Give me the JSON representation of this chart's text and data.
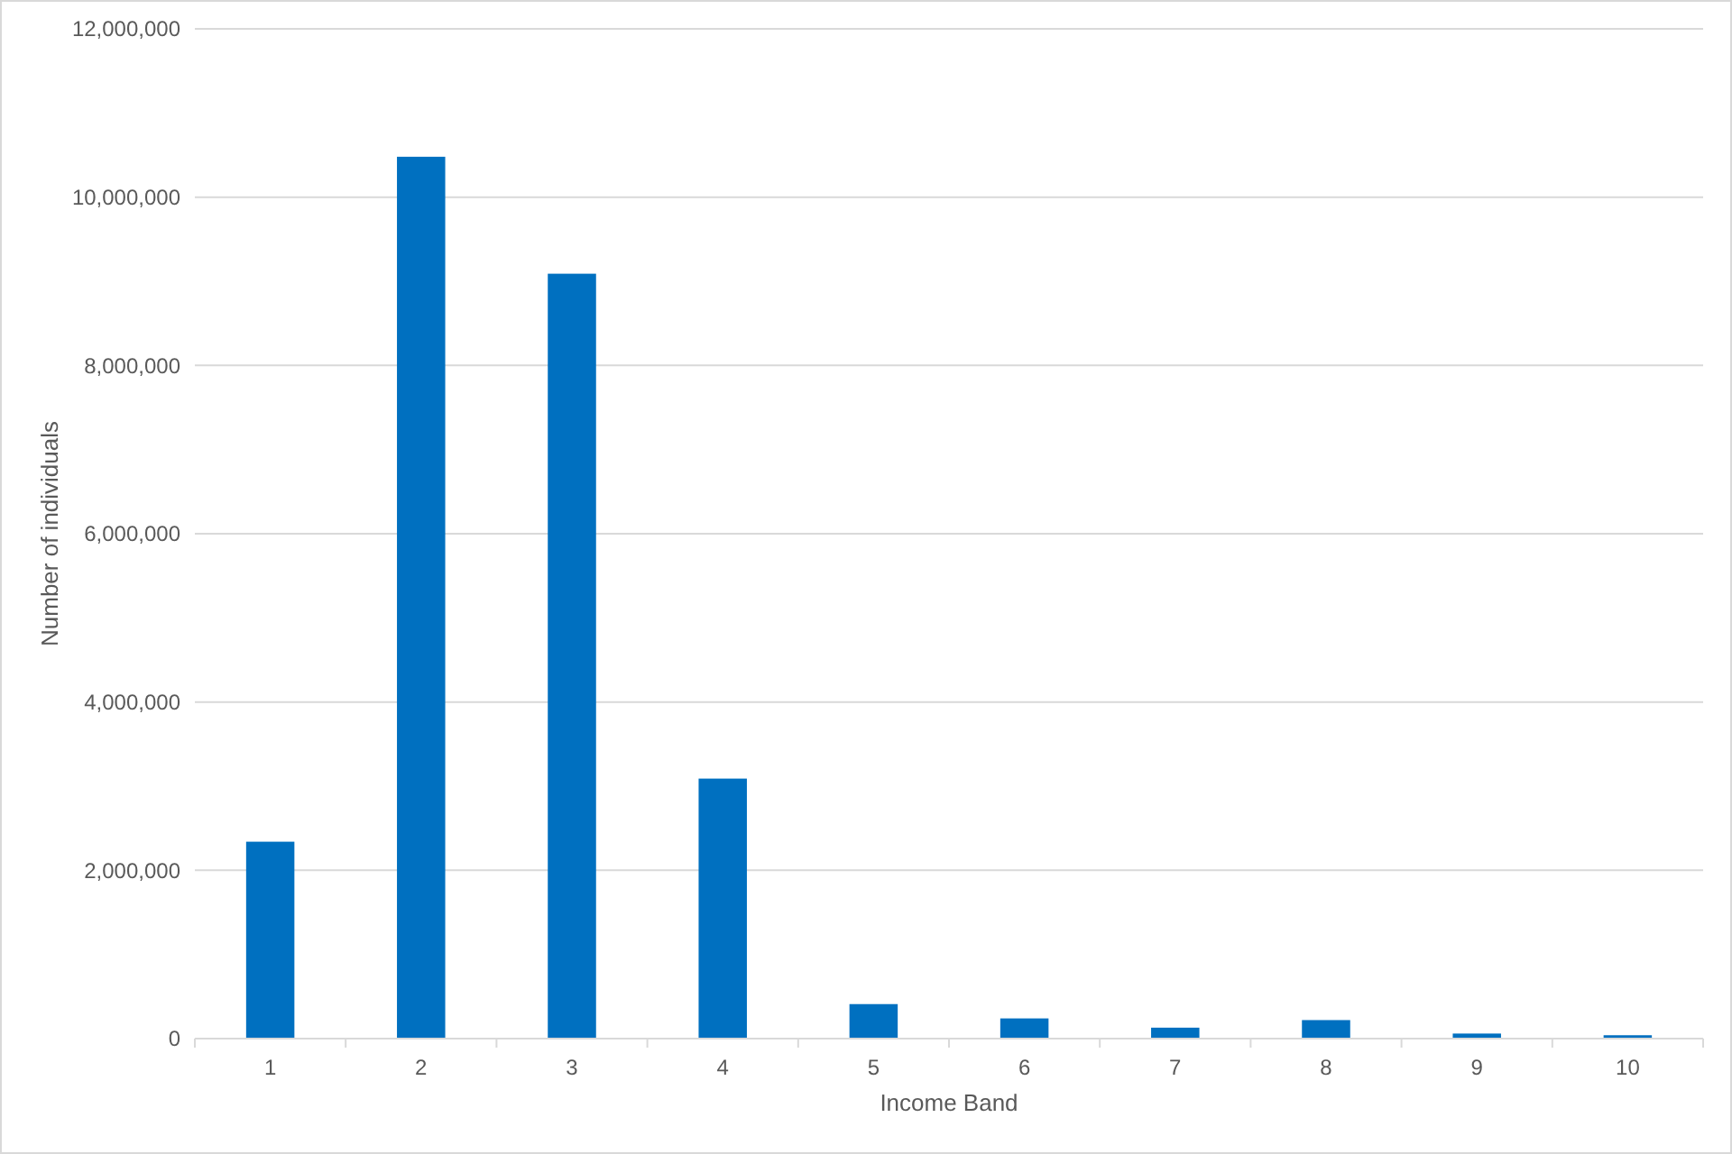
{
  "chart_data": {
    "type": "bar",
    "xlabel": "Income Band",
    "ylabel": "Number of individuals",
    "categories": [
      "1",
      "2",
      "3",
      "4",
      "5",
      "6",
      "7",
      "8",
      "9",
      "10"
    ],
    "values": [
      2340000,
      10480000,
      9090000,
      3090000,
      410000,
      240000,
      130000,
      220000,
      60000,
      40000
    ],
    "color": "#0070c0",
    "ylim": [
      0,
      12000000
    ],
    "yticks": [
      {
        "value": 0,
        "label": "0"
      },
      {
        "value": 2000000,
        "label": "2,000,000"
      },
      {
        "value": 4000000,
        "label": "4,000,000"
      },
      {
        "value": 6000000,
        "label": "6,000,000"
      },
      {
        "value": 8000000,
        "label": "8,000,000"
      },
      {
        "value": 10000000,
        "label": "10,000,000"
      },
      {
        "value": 12000000,
        "label": "12,000,000"
      }
    ],
    "grid": "y"
  }
}
